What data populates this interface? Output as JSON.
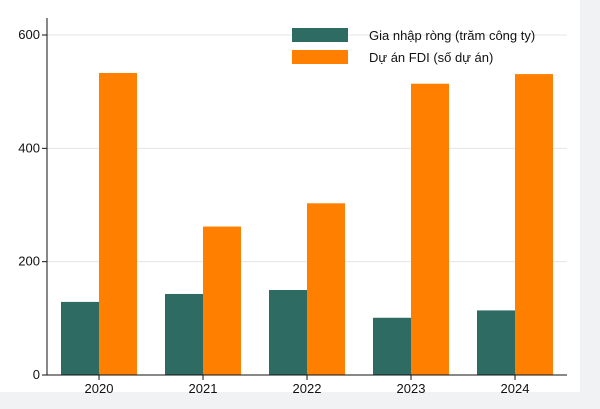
{
  "chart_data": {
    "type": "bar",
    "categories": [
      "2020",
      "2021",
      "2022",
      "2023",
      "2024"
    ],
    "series": [
      {
        "name": "Gia nhập ròng (trăm công ty)",
        "values": [
          129,
          143,
          150,
          101,
          114
        ],
        "color": "#2e6b62"
      },
      {
        "name": "Dự án FDI (số dự án)",
        "values": [
          533,
          262,
          303,
          514,
          531
        ],
        "color": "#ff8000"
      }
    ],
    "ylim": [
      0,
      630
    ],
    "yticks": [
      0,
      200,
      400,
      600
    ],
    "grid": true,
    "legend_position": "top-right",
    "title": "",
    "xlabel": "",
    "ylabel": ""
  }
}
